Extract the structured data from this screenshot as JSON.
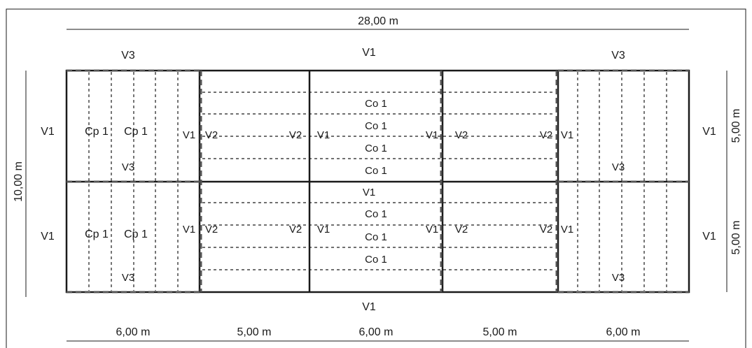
{
  "dimensions": {
    "total_width": "28,00 m",
    "total_height": "10,00 m",
    "half_height_top": "5,00 m",
    "half_height_bottom": "5,00 m",
    "bays": [
      "6,00 m",
      "5,00 m",
      "6,00 m",
      "5,00 m",
      "6,00 m"
    ]
  },
  "beams": {
    "v1": "V1",
    "v2": "V2",
    "v3": "V3"
  },
  "joists": {
    "co1": "Co 1",
    "cp1": "Cp 1"
  }
}
